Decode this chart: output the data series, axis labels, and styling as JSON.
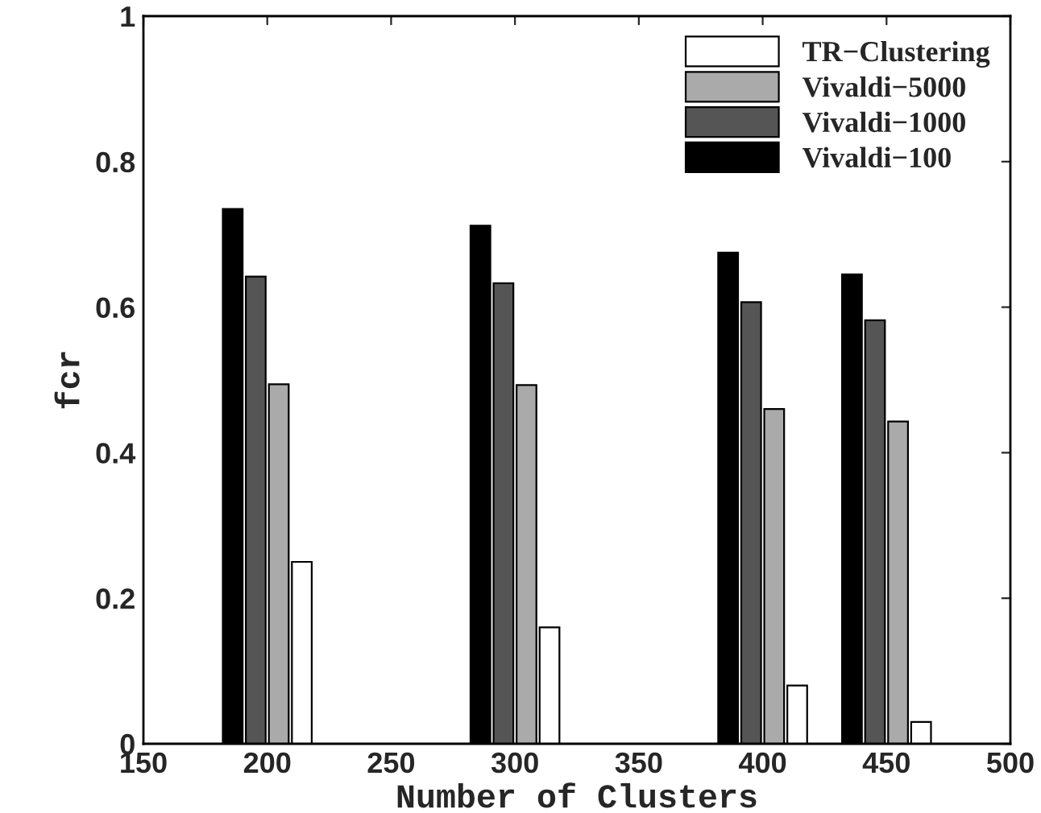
{
  "chart_data": {
    "type": "bar",
    "xlabel": "Number of Clusters",
    "ylabel": "fcr",
    "x": [
      200,
      300,
      400,
      450
    ],
    "series": [
      {
        "name": "Vivaldi−100",
        "color": "#000000",
        "values": [
          0.735,
          0.712,
          0.675,
          0.645
        ]
      },
      {
        "name": "Vivaldi−1000",
        "color": "#555555",
        "values": [
          0.642,
          0.633,
          0.607,
          0.582
        ]
      },
      {
        "name": "Vivaldi−5000",
        "color": "#aaaaaa",
        "values": [
          0.494,
          0.493,
          0.46,
          0.443
        ]
      },
      {
        "name": "TR−Clustering",
        "color": "#ffffff",
        "values": [
          0.25,
          0.16,
          0.08,
          0.03
        ]
      }
    ],
    "xlim": [
      150,
      500
    ],
    "xticks": [
      150,
      200,
      250,
      300,
      350,
      400,
      450,
      500
    ],
    "ylim": [
      0,
      1
    ],
    "yticks": [
      0,
      0.2,
      0.4,
      0.6,
      0.8,
      1
    ],
    "grid": false,
    "legend": "top right"
  }
}
